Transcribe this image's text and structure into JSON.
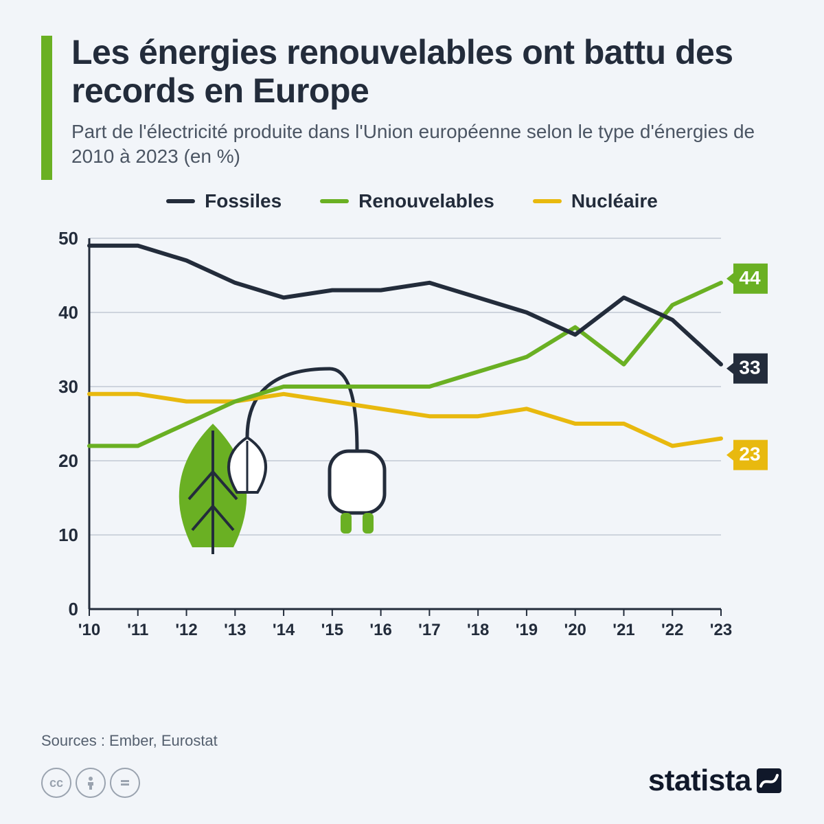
{
  "header": {
    "title": "Les énergies renouvelables ont battu des records en Europe",
    "subtitle": "Part de l'électricité produite dans l'Union européenne selon le type d'énergies de 2010 à 2023 (en %)"
  },
  "accent_color": "#6ab023",
  "background_color": "#f2f5f9",
  "legend": {
    "items": [
      {
        "label": "Fossiles",
        "color": "#232c3b"
      },
      {
        "label": "Renouvelables",
        "color": "#6ab023"
      },
      {
        "label": "Nucléaire",
        "color": "#e8b90f"
      }
    ]
  },
  "chart": {
    "type": "line",
    "x_labels": [
      "'10",
      "'11",
      "'12",
      "'13",
      "'14",
      "'15",
      "'16",
      "'17",
      "'18",
      "'19",
      "'20",
      "'21",
      "'22",
      "'23"
    ],
    "ylim": [
      0,
      50
    ],
    "ytick_step": 10,
    "grid_color": "#c2c9d4",
    "axis_color": "#232c3b",
    "line_width": 6,
    "series": {
      "fossiles": {
        "color": "#232c3b",
        "values": [
          49,
          49,
          47,
          44,
          42,
          43,
          43,
          44,
          42,
          40,
          37,
          42,
          39,
          33
        ],
        "callout": "33"
      },
      "renouvelables": {
        "color": "#6ab023",
        "values": [
          22,
          22,
          25,
          28,
          30,
          30,
          30,
          30,
          32,
          34,
          38,
          33,
          41,
          44
        ],
        "callout": "44"
      },
      "nucleaire": {
        "color": "#e8b90f",
        "values": [
          29,
          29,
          28,
          28,
          29,
          28,
          27,
          26,
          26,
          27,
          25,
          25,
          22,
          23
        ],
        "callout": "23"
      }
    },
    "title_fontsize": 50,
    "subtitle_fontsize": 28,
    "axis_fontsize": 26
  },
  "footer": {
    "sources": "Sources : Ember, Eurostat",
    "brand": "statista"
  }
}
